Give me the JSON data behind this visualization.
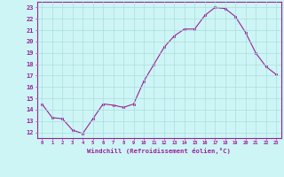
{
  "x": [
    0,
    1,
    2,
    3,
    4,
    5,
    6,
    7,
    8,
    9,
    10,
    11,
    12,
    13,
    14,
    15,
    16,
    17,
    18,
    19,
    20,
    21,
    22,
    23
  ],
  "y": [
    14.5,
    13.3,
    13.2,
    12.2,
    11.9,
    13.2,
    14.5,
    14.4,
    14.2,
    14.5,
    16.5,
    18.0,
    19.5,
    20.5,
    21.1,
    21.1,
    22.3,
    23.0,
    22.9,
    22.2,
    20.8,
    19.0,
    17.8,
    17.1
  ],
  "line_color": "#992299",
  "marker_color": "#992299",
  "bg_color": "#cef5f5",
  "grid_color": "#aadddd",
  "xlabel": "Windchill (Refroidissement éolien,°C)",
  "ylabel_ticks": [
    12,
    13,
    14,
    15,
    16,
    17,
    18,
    19,
    20,
    21,
    22,
    23
  ],
  "xlim": [
    -0.5,
    23.5
  ],
  "ylim": [
    11.5,
    23.5
  ]
}
